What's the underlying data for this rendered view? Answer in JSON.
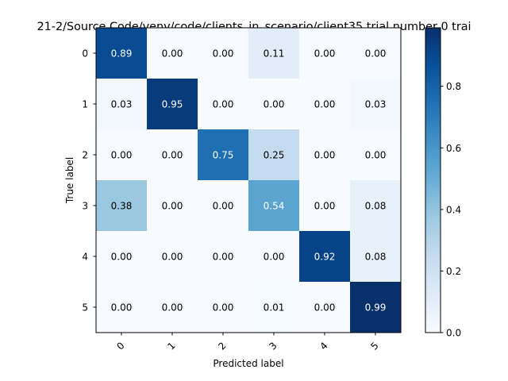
{
  "chart_data": {
    "type": "heatmap",
    "title": "21-2/Source Code/venv/code/clients_in_scenario/client35 trial number 0 trai",
    "xlabel": "Predicted label",
    "ylabel": "True label",
    "x_categories": [
      "0",
      "1",
      "2",
      "3",
      "4",
      "5"
    ],
    "y_categories": [
      "0",
      "1",
      "2",
      "3",
      "4",
      "5"
    ],
    "values": [
      [
        0.89,
        0.0,
        0.0,
        0.11,
        0.0,
        0.0
      ],
      [
        0.03,
        0.95,
        0.0,
        0.0,
        0.0,
        0.03
      ],
      [
        0.0,
        0.0,
        0.75,
        0.25,
        0.0,
        0.0
      ],
      [
        0.38,
        0.0,
        0.0,
        0.54,
        0.0,
        0.08
      ],
      [
        0.0,
        0.0,
        0.0,
        0.0,
        0.92,
        0.08
      ],
      [
        0.0,
        0.0,
        0.0,
        0.01,
        0.0,
        0.99
      ]
    ],
    "value_labels": [
      [
        "0.89",
        "0.00",
        "0.00",
        "0.11",
        "0.00",
        "0.00"
      ],
      [
        "0.03",
        "0.95",
        "0.00",
        "0.00",
        "0.00",
        "0.03"
      ],
      [
        "0.00",
        "0.00",
        "0.75",
        "0.25",
        "0.00",
        "0.00"
      ],
      [
        "0.38",
        "0.00",
        "0.00",
        "0.54",
        "0.00",
        "0.08"
      ],
      [
        "0.00",
        "0.00",
        "0.00",
        "0.00",
        "0.92",
        "0.08"
      ],
      [
        "0.00",
        "0.00",
        "0.00",
        "0.01",
        "0.00",
        "0.99"
      ]
    ],
    "colormap": "Blues",
    "colorbar": {
      "range": [
        0.0,
        0.99
      ],
      "ticks": [
        0.0,
        0.2,
        0.4,
        0.6,
        0.8
      ],
      "tick_labels": [
        "0.0",
        "0.2",
        "0.4",
        "0.6",
        "0.8"
      ]
    },
    "x_tick_rotation": 45,
    "grid": false
  }
}
